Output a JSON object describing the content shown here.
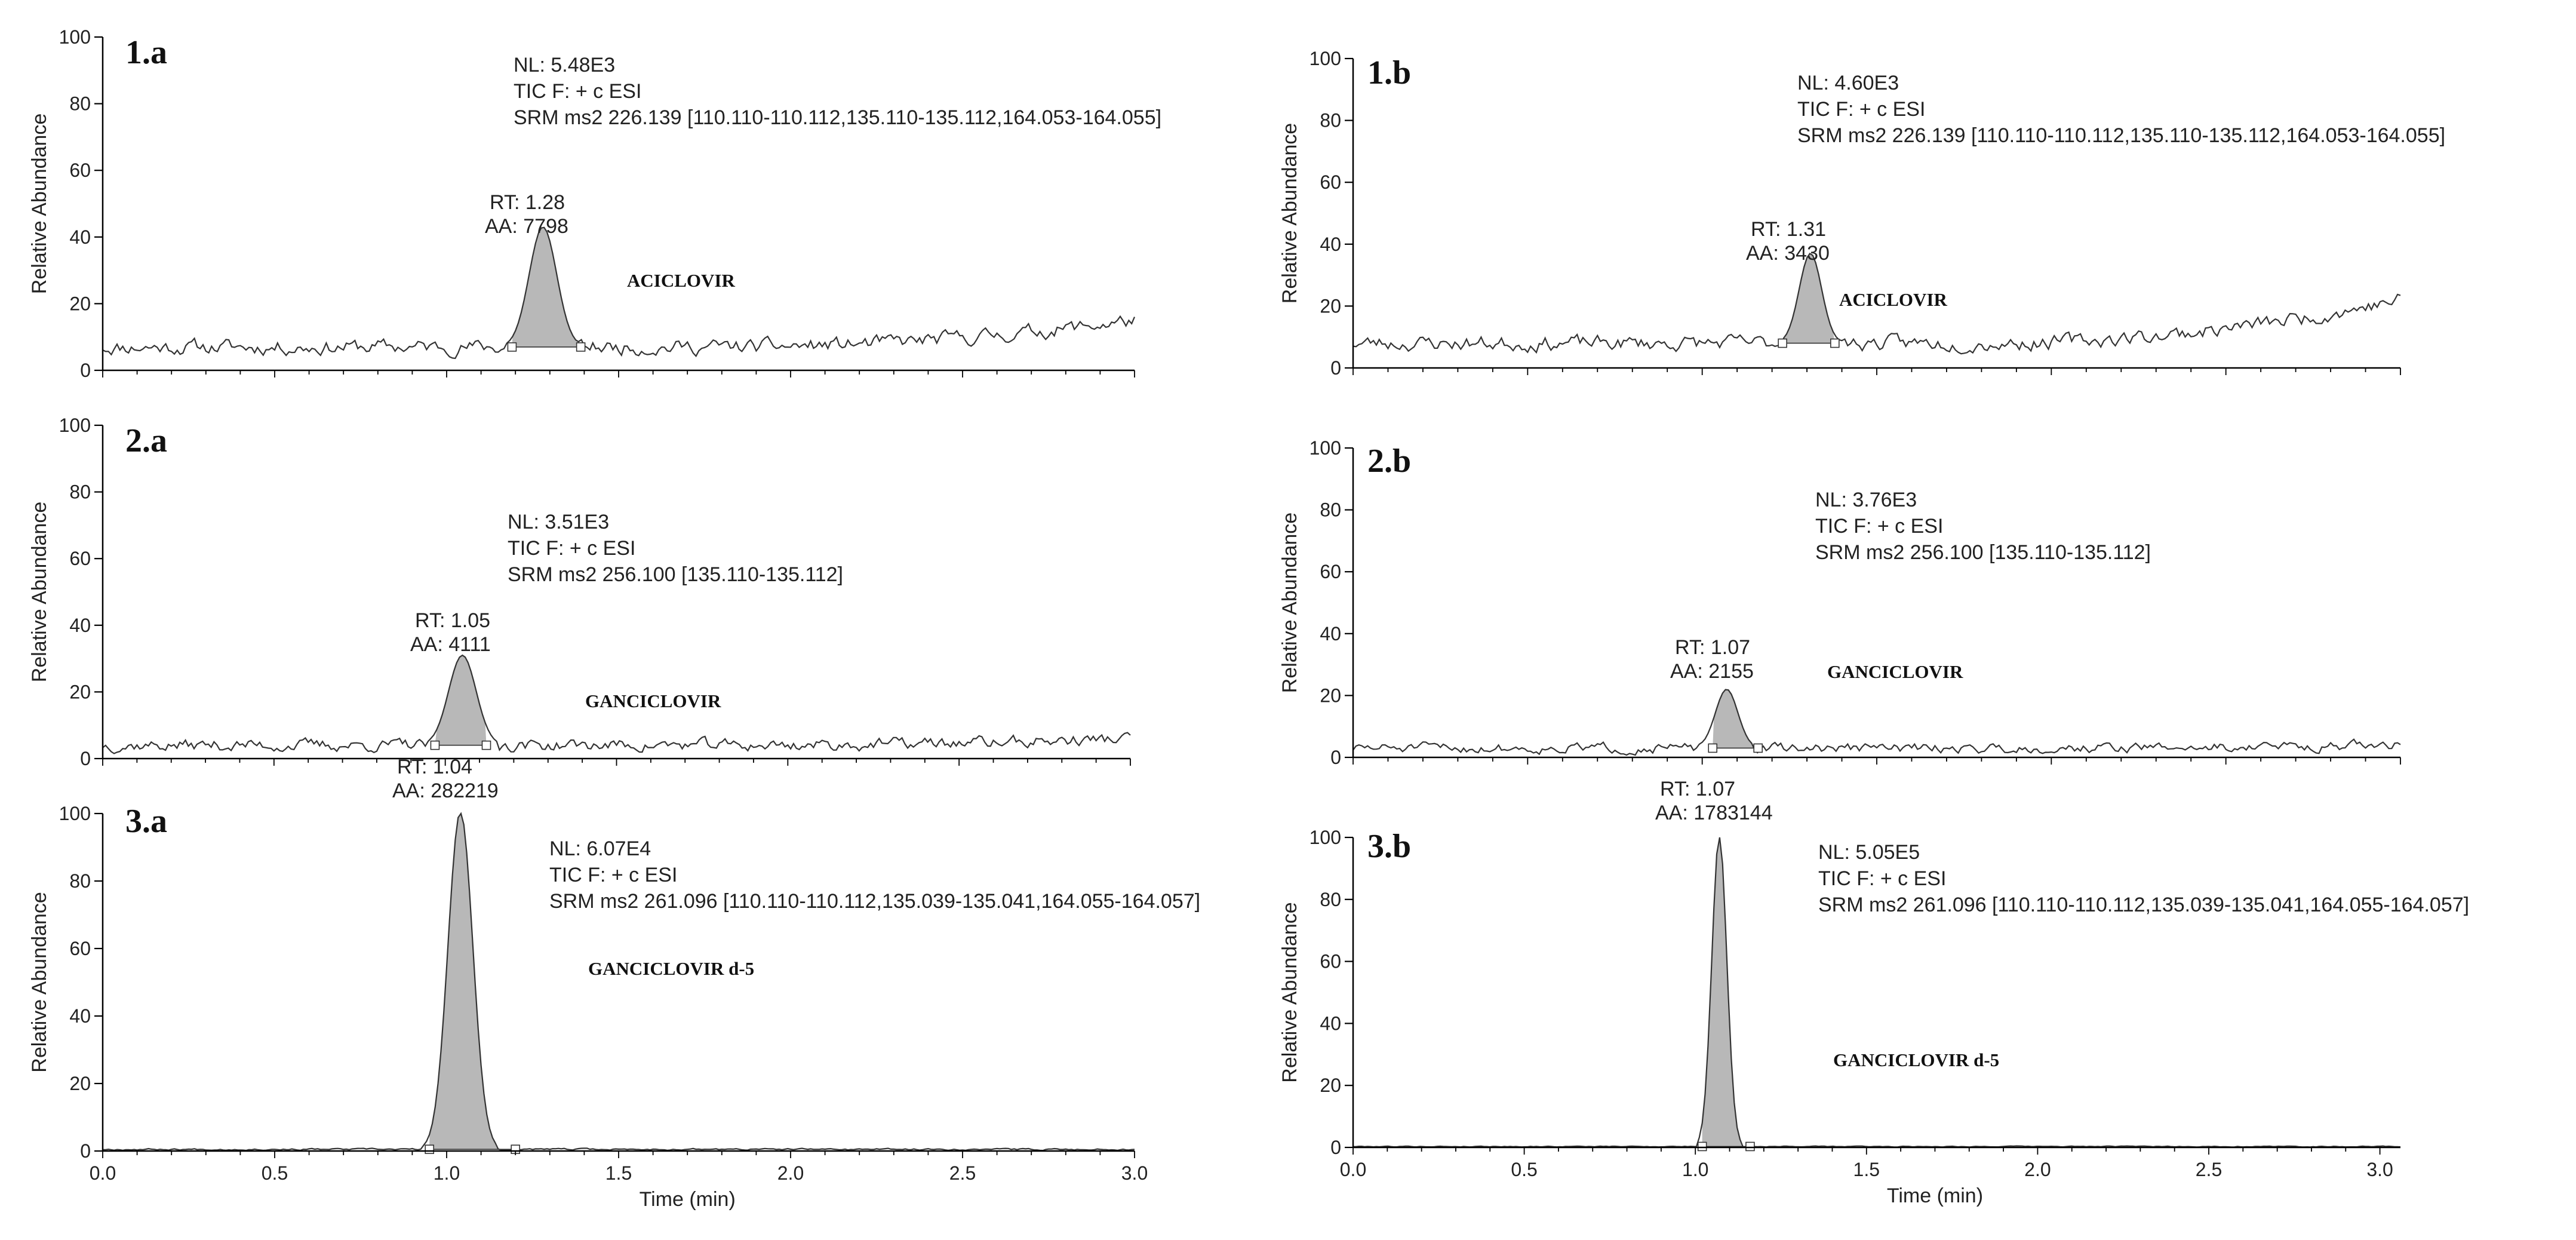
{
  "figure_title": "",
  "colors": {
    "peak_fill": "#b8b8b8",
    "trace": "#333333",
    "axis": "#000000",
    "text": "#222222"
  },
  "chart_data": [
    {
      "id": "1a",
      "type": "line",
      "label": "1.a",
      "ylabel": "Relative Abundance",
      "xlabel": "",
      "xlim": [
        0.0,
        3.0
      ],
      "ylim": [
        0,
        100
      ],
      "yticks": [
        0,
        20,
        40,
        60,
        80,
        100
      ],
      "xticks": [],
      "nl": "NL: 5.48E3",
      "tic": "TIC F: + c ESI",
      "srm": "SRM ms2  226.139 [110.110-110.112,135.110-135.112,164.053-164.055]",
      "rt": "RT: 1.28",
      "aa": "AA: 7798",
      "compound": "ACICLOVIR",
      "peak": {
        "center": 1.28,
        "height": 36,
        "sigma": 0.04,
        "start": 1.19,
        "end": 1.39,
        "base": 7
      },
      "baseline": {
        "level": 7,
        "noise": 2.2,
        "seed": 11,
        "rise_end": 15
      }
    },
    {
      "id": "1b",
      "type": "line",
      "label": "1.b",
      "ylabel": "Relative Abundance",
      "xlabel": "",
      "xlim": [
        0.0,
        3.0
      ],
      "ylim": [
        0,
        100
      ],
      "yticks": [
        0,
        20,
        40,
        60,
        80,
        100
      ],
      "xticks": [],
      "nl": "NL: 4.60E3",
      "tic": "TIC F: + c ESI",
      "srm": "SRM ms2  226.139 [110.110-110.112,135.110-135.112,164.053-164.055]",
      "rt": "RT: 1.31",
      "aa": "AA: 3430",
      "compound": "ACICLOVIR",
      "peak": {
        "center": 1.31,
        "height": 29,
        "sigma": 0.032,
        "start": 1.23,
        "end": 1.38,
        "base": 8
      },
      "baseline": {
        "level": 8,
        "noise": 2.4,
        "seed": 23,
        "rise_end": 22
      }
    },
    {
      "id": "2a",
      "type": "line",
      "label": "2.a",
      "ylabel": "Relative Abundance",
      "xlabel": "",
      "xlim": [
        0.0,
        3.0
      ],
      "ylim": [
        0,
        100
      ],
      "yticks": [
        0,
        20,
        40,
        60,
        80,
        100
      ],
      "xticks": [],
      "nl": "NL: 3.51E3",
      "tic": "TIC F: + c ESI",
      "srm": "SRM ms2  256.100 [135.110-135.112]",
      "rt": "RT: 1.05",
      "aa": "AA: 4111",
      "compound": "GANCICLOVIR",
      "peak": {
        "center": 1.05,
        "height": 27,
        "sigma": 0.04,
        "start": 0.97,
        "end": 1.12,
        "base": 4
      },
      "baseline": {
        "level": 4,
        "noise": 1.8,
        "seed": 37,
        "rise_end": 6
      }
    },
    {
      "id": "2b",
      "type": "line",
      "label": "2.b",
      "ylabel": "Relative Abundance",
      "xlabel": "",
      "xlim": [
        0.0,
        3.0
      ],
      "ylim": [
        0,
        100
      ],
      "yticks": [
        0,
        20,
        40,
        60,
        80,
        100
      ],
      "xticks": [],
      "nl": "NL: 3.76E3",
      "tic": "TIC F: + c ESI",
      "srm": "SRM ms2  256.100 [135.110-135.112]",
      "rt": "RT: 1.07",
      "aa": "AA: 2155",
      "compound": "GANCICLOVIR",
      "peak": {
        "center": 1.07,
        "height": 19,
        "sigma": 0.032,
        "start": 1.03,
        "end": 1.16,
        "base": 3
      },
      "baseline": {
        "level": 3,
        "noise": 1.6,
        "seed": 51,
        "rise_end": 4
      }
    },
    {
      "id": "3a",
      "type": "line",
      "label": "3.a",
      "ylabel": "Relative Abundance",
      "xlabel": "Time (min)",
      "xlim": [
        0.0,
        3.0
      ],
      "ylim": [
        0,
        100
      ],
      "yticks": [
        0,
        20,
        40,
        60,
        80,
        100
      ],
      "xticks": [
        0.0,
        0.5,
        1.0,
        1.5,
        2.0,
        2.5,
        3.0
      ],
      "nl": "NL: 6.07E4",
      "tic": "TIC F: + c ESI",
      "srm": "SRM ms2  261.096 [110.110-110.112,135.039-135.041,164.055-164.057]",
      "rt": "RT: 1.04",
      "aa": "AA: 282219",
      "compound": "GANCICLOVIR d-5",
      "peak": {
        "center": 1.04,
        "height": 100,
        "sigma": 0.036,
        "start": 0.95,
        "end": 1.2,
        "base": 0.5
      },
      "baseline": {
        "level": 0.5,
        "noise": 0.25,
        "seed": 67,
        "rise_end": 0.5
      }
    },
    {
      "id": "3b",
      "type": "line",
      "label": "3.b",
      "ylabel": "Relative Abundance",
      "xlabel": "Time (min)",
      "xlim": [
        0.0,
        3.06
      ],
      "ylim": [
        0,
        100
      ],
      "yticks": [
        0,
        20,
        40,
        60,
        80,
        100
      ],
      "xticks": [
        0.0,
        0.5,
        1.0,
        1.5,
        2.0,
        2.5,
        3.0
      ],
      "nl": "NL: 5.05E5",
      "tic": "TIC F: + c ESI",
      "srm": "SRM ms2  261.096 [110.110-110.112,135.039-135.041,164.055-164.057]",
      "rt": "RT: 1.07",
      "aa": "AA: 1783144",
      "compound": "GANCICLOVIR d-5",
      "peak": {
        "center": 1.07,
        "height": 100,
        "sigma": 0.022,
        "start": 1.02,
        "end": 1.16,
        "base": 0.3
      },
      "baseline": {
        "level": 0.3,
        "noise": 0.15,
        "seed": 79,
        "rise_end": 0.3
      }
    }
  ]
}
